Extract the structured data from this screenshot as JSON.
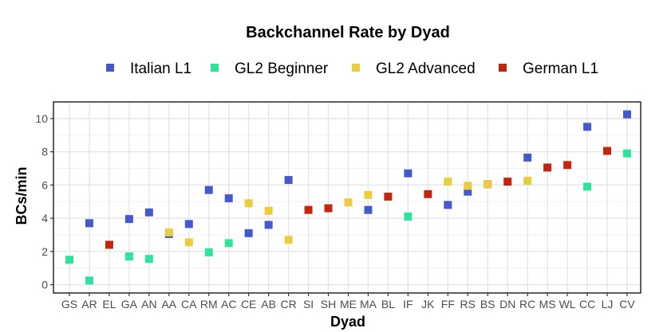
{
  "chart_data": {
    "type": "scatter",
    "title": "Backchannel Rate by Dyad",
    "xlabel": "Dyad",
    "ylabel": "BCs/min",
    "ylim": [
      -0.5,
      11
    ],
    "yticks": [
      0,
      2,
      4,
      6,
      8,
      10
    ],
    "grid": true,
    "legend_position": "top",
    "categories": [
      "GS",
      "AR",
      "EL",
      "GA",
      "AN",
      "AA",
      "CA",
      "RM",
      "AC",
      "CE",
      "AB",
      "CR",
      "SI",
      "SH",
      "ME",
      "MA",
      "BL",
      "IF",
      "JK",
      "FF",
      "RS",
      "BS",
      "DN",
      "RC",
      "MS",
      "WL",
      "CC",
      "LJ",
      "CV"
    ],
    "series": [
      {
        "name": "Italian L1",
        "color": "#4459cc",
        "points": [
          {
            "x": "AR",
            "y": 3.7
          },
          {
            "x": "GA",
            "y": 3.95
          },
          {
            "x": "AN",
            "y": 4.35
          },
          {
            "x": "AA",
            "y": 3.05
          },
          {
            "x": "CA",
            "y": 3.65
          },
          {
            "x": "RM",
            "y": 5.7
          },
          {
            "x": "AC",
            "y": 5.2
          },
          {
            "x": "CE",
            "y": 3.1
          },
          {
            "x": "AB",
            "y": 3.6
          },
          {
            "x": "CR",
            "y": 6.3
          },
          {
            "x": "MA",
            "y": 4.5
          },
          {
            "x": "IF",
            "y": 6.7
          },
          {
            "x": "FF",
            "y": 4.8
          },
          {
            "x": "RS",
            "y": 5.6
          },
          {
            "x": "BS",
            "y": 6.05
          },
          {
            "x": "RC",
            "y": 7.65
          },
          {
            "x": "CC",
            "y": 9.5
          },
          {
            "x": "CV",
            "y": 10.25
          }
        ]
      },
      {
        "name": "GL2 Beginner",
        "color": "#2ee39c",
        "points": [
          {
            "x": "GS",
            "y": 1.5
          },
          {
            "x": "AR",
            "y": 0.25
          },
          {
            "x": "GA",
            "y": 1.7
          },
          {
            "x": "AN",
            "y": 1.55
          },
          {
            "x": "RM",
            "y": 1.95
          },
          {
            "x": "AC",
            "y": 2.5
          },
          {
            "x": "IF",
            "y": 4.1
          },
          {
            "x": "CC",
            "y": 5.9
          },
          {
            "x": "CV",
            "y": 7.9
          }
        ]
      },
      {
        "name": "GL2 Advanced",
        "color": "#ebcc3c",
        "points": [
          {
            "x": "AA",
            "y": 3.15
          },
          {
            "x": "CA",
            "y": 2.55
          },
          {
            "x": "CE",
            "y": 4.9
          },
          {
            "x": "AB",
            "y": 4.45
          },
          {
            "x": "CR",
            "y": 2.7
          },
          {
            "x": "ME",
            "y": 4.95
          },
          {
            "x": "MA",
            "y": 5.4
          },
          {
            "x": "FF",
            "y": 6.2
          },
          {
            "x": "RS",
            "y": 5.95
          },
          {
            "x": "BS",
            "y": 6.05
          },
          {
            "x": "RC",
            "y": 6.25
          }
        ]
      },
      {
        "name": "German L1",
        "color": "#c4250e",
        "points": [
          {
            "x": "EL",
            "y": 2.4
          },
          {
            "x": "SI",
            "y": 4.5
          },
          {
            "x": "SH",
            "y": 4.6
          },
          {
            "x": "BL",
            "y": 5.3
          },
          {
            "x": "JK",
            "y": 5.45
          },
          {
            "x": "DN",
            "y": 6.2
          },
          {
            "x": "MS",
            "y": 7.05
          },
          {
            "x": "WL",
            "y": 7.2
          },
          {
            "x": "LJ",
            "y": 8.05
          }
        ]
      }
    ]
  }
}
